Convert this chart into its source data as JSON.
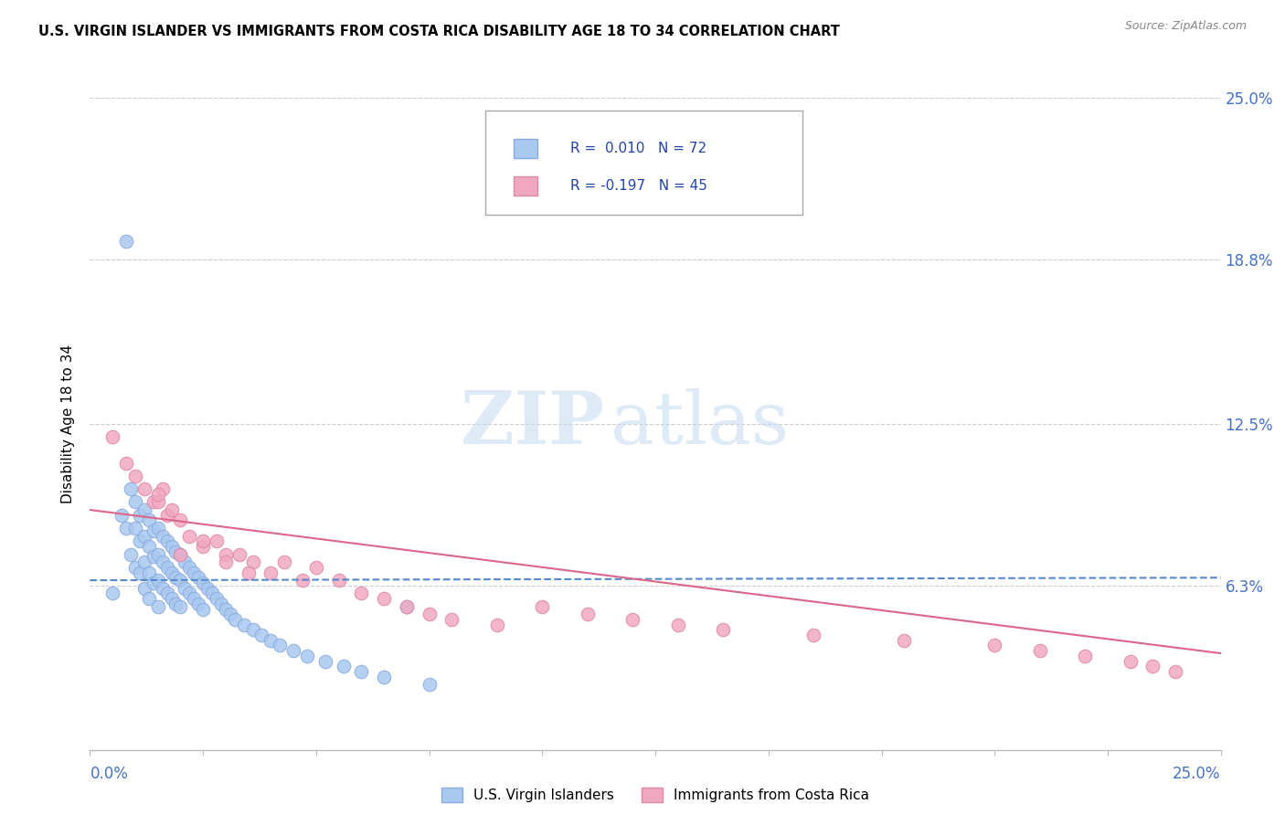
{
  "title": "U.S. VIRGIN ISLANDER VS IMMIGRANTS FROM COSTA RICA DISABILITY AGE 18 TO 34 CORRELATION CHART",
  "source": "Source: ZipAtlas.com",
  "ylabel": "Disability Age 18 to 34",
  "xlim": [
    0.0,
    0.25
  ],
  "ylim": [
    0.0,
    0.25
  ],
  "yticks": [
    0.0,
    0.063,
    0.125,
    0.188,
    0.25
  ],
  "ytick_labels_right": [
    "",
    "6.3%",
    "12.5%",
    "18.8%",
    "25.0%"
  ],
  "series1_color": "#aac8f0",
  "series2_color": "#f0a8c0",
  "series1_edge": "#88aadd",
  "series2_edge": "#dd88aa",
  "trendline1_color": "#5588cc",
  "trendline2_color": "#dd6688",
  "watermark_zip": "ZIP",
  "watermark_atlas": "atlas",
  "series1_label": "U.S. Virgin Islanders",
  "series2_label": "Immigrants from Costa Rica",
  "legend_r1": "R =  0.010",
  "legend_n1": "N = 72",
  "legend_r2": "R = -0.197",
  "legend_n2": "N = 45",
  "series1_x": [
    0.005,
    0.007,
    0.008,
    0.009,
    0.009,
    0.01,
    0.01,
    0.01,
    0.011,
    0.011,
    0.011,
    0.012,
    0.012,
    0.012,
    0.012,
    0.013,
    0.013,
    0.013,
    0.013,
    0.014,
    0.014,
    0.014,
    0.015,
    0.015,
    0.015,
    0.015,
    0.016,
    0.016,
    0.016,
    0.017,
    0.017,
    0.017,
    0.018,
    0.018,
    0.018,
    0.019,
    0.019,
    0.019,
    0.02,
    0.02,
    0.02,
    0.021,
    0.021,
    0.022,
    0.022,
    0.023,
    0.023,
    0.024,
    0.024,
    0.025,
    0.025,
    0.026,
    0.027,
    0.028,
    0.029,
    0.03,
    0.031,
    0.032,
    0.034,
    0.036,
    0.038,
    0.04,
    0.042,
    0.045,
    0.048,
    0.052,
    0.056,
    0.06,
    0.065,
    0.07,
    0.075
  ],
  "series1_y": [
    0.06,
    0.09,
    0.085,
    0.1,
    0.075,
    0.095,
    0.085,
    0.07,
    0.09,
    0.08,
    0.068,
    0.092,
    0.082,
    0.072,
    0.062,
    0.088,
    0.078,
    0.068,
    0.058,
    0.084,
    0.074,
    0.064,
    0.085,
    0.075,
    0.065,
    0.055,
    0.082,
    0.072,
    0.062,
    0.08,
    0.07,
    0.06,
    0.078,
    0.068,
    0.058,
    0.076,
    0.066,
    0.056,
    0.075,
    0.065,
    0.055,
    0.072,
    0.062,
    0.07,
    0.06,
    0.068,
    0.058,
    0.066,
    0.056,
    0.064,
    0.054,
    0.062,
    0.06,
    0.058,
    0.056,
    0.054,
    0.052,
    0.05,
    0.048,
    0.046,
    0.044,
    0.042,
    0.04,
    0.038,
    0.036,
    0.034,
    0.032,
    0.03,
    0.028,
    0.055,
    0.025
  ],
  "series1_outlier_x": [
    0.008
  ],
  "series1_outlier_y": [
    0.195
  ],
  "series2_x": [
    0.005,
    0.008,
    0.01,
    0.012,
    0.014,
    0.015,
    0.016,
    0.017,
    0.018,
    0.02,
    0.022,
    0.025,
    0.028,
    0.03,
    0.033,
    0.036,
    0.04,
    0.043,
    0.047,
    0.05,
    0.055,
    0.06,
    0.065,
    0.07,
    0.075,
    0.08,
    0.09,
    0.1,
    0.11,
    0.12,
    0.13,
    0.14,
    0.16,
    0.18,
    0.2,
    0.21,
    0.22,
    0.23,
    0.235,
    0.24,
    0.015,
    0.02,
    0.025,
    0.03,
    0.035
  ],
  "series2_y": [
    0.12,
    0.11,
    0.105,
    0.1,
    0.095,
    0.095,
    0.1,
    0.09,
    0.092,
    0.088,
    0.082,
    0.078,
    0.08,
    0.075,
    0.075,
    0.072,
    0.068,
    0.072,
    0.065,
    0.07,
    0.065,
    0.06,
    0.058,
    0.055,
    0.052,
    0.05,
    0.048,
    0.055,
    0.052,
    0.05,
    0.048,
    0.046,
    0.044,
    0.042,
    0.04,
    0.038,
    0.036,
    0.034,
    0.032,
    0.03,
    0.098,
    0.075,
    0.08,
    0.072,
    0.068
  ]
}
